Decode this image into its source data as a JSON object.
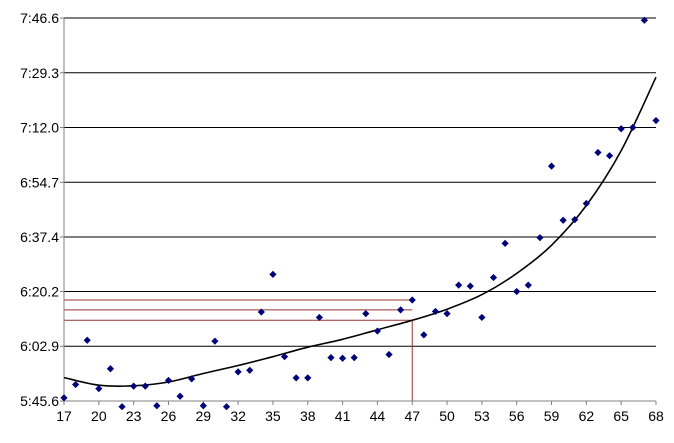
{
  "chart_data": {
    "type": "scatter",
    "title": "",
    "xlabel": "",
    "ylabel": "",
    "xlim": [
      17,
      68
    ],
    "ylim_seconds": [
      345.6,
      466.6
    ],
    "x_ticks": [
      17,
      20,
      23,
      26,
      29,
      32,
      35,
      38,
      41,
      44,
      47,
      50,
      53,
      56,
      59,
      62,
      65,
      68
    ],
    "x_tick_labels": [
      "17",
      "20",
      "23",
      "26",
      "29",
      "32",
      "35",
      "38",
      "41",
      "44",
      "47",
      "50",
      "53",
      "56",
      "59",
      "62",
      "65",
      "68"
    ],
    "y_ticks_seconds": [
      345.6,
      362.9,
      380.2,
      397.4,
      414.7,
      432.0,
      449.3,
      466.6
    ],
    "y_tick_labels": [
      "5:45.6",
      "6:02.9",
      "6:20.2",
      "6:37.4",
      "6:54.7",
      "7:12.0",
      "7:29.3",
      "7:46.6"
    ],
    "gridlines": "horizontal",
    "legend": "none",
    "colors": {
      "points": "#00007a",
      "trend": "#000000",
      "reference": "#993333",
      "grid": "#000000",
      "axis": "#808080"
    },
    "points": [
      {
        "x": 17,
        "y": 346.6
      },
      {
        "x": 18,
        "y": 350.8
      },
      {
        "x": 19,
        "y": 364.8
      },
      {
        "x": 20,
        "y": 349.5
      },
      {
        "x": 21,
        "y": 355.8
      },
      {
        "x": 22,
        "y": 343.8
      },
      {
        "x": 23,
        "y": 350.3
      },
      {
        "x": 24,
        "y": 350.3
      },
      {
        "x": 25,
        "y": 344.1
      },
      {
        "x": 26,
        "y": 352.1
      },
      {
        "x": 27,
        "y": 347.1
      },
      {
        "x": 28,
        "y": 352.6
      },
      {
        "x": 29,
        "y": 344.1
      },
      {
        "x": 30,
        "y": 364.5
      },
      {
        "x": 31,
        "y": 343.8
      },
      {
        "x": 32,
        "y": 354.8
      },
      {
        "x": 33,
        "y": 355.3
      },
      {
        "x": 34,
        "y": 373.7
      },
      {
        "x": 35,
        "y": 385.6
      },
      {
        "x": 36,
        "y": 359.6
      },
      {
        "x": 37,
        "y": 352.9
      },
      {
        "x": 38,
        "y": 352.9
      },
      {
        "x": 39,
        "y": 372.0
      },
      {
        "x": 40,
        "y": 359.3
      },
      {
        "x": 41,
        "y": 359.1
      },
      {
        "x": 42,
        "y": 359.3
      },
      {
        "x": 43,
        "y": 373.2
      },
      {
        "x": 44,
        "y": 367.7
      },
      {
        "x": 45,
        "y": 360.3
      },
      {
        "x": 46,
        "y": 374.4
      },
      {
        "x": 47,
        "y": 377.5
      },
      {
        "x": 48,
        "y": 366.5
      },
      {
        "x": 49,
        "y": 373.9
      },
      {
        "x": 50,
        "y": 373.2
      },
      {
        "x": 51,
        "y": 382.2
      },
      {
        "x": 52,
        "y": 381.9
      },
      {
        "x": 53,
        "y": 372.0
      },
      {
        "x": 54,
        "y": 384.6
      },
      {
        "x": 55,
        "y": 395.4
      },
      {
        "x": 56,
        "y": 380.2
      },
      {
        "x": 57,
        "y": 382.2
      },
      {
        "x": 58,
        "y": 397.2
      },
      {
        "x": 59,
        "y": 419.8
      },
      {
        "x": 60,
        "y": 402.7
      },
      {
        "x": 61,
        "y": 402.9
      },
      {
        "x": 62,
        "y": 408.0
      },
      {
        "x": 63,
        "y": 424.1
      },
      {
        "x": 64,
        "y": 423.1
      },
      {
        "x": 65,
        "y": 431.6
      },
      {
        "x": 66,
        "y": 432.0
      },
      {
        "x": 67,
        "y": 465.9
      },
      {
        "x": 68,
        "y": 434.2
      }
    ],
    "trendline": {
      "type": "polynomial",
      "points": [
        {
          "x": 17,
          "y": 353.0
        },
        {
          "x": 20,
          "y": 350.6
        },
        {
          "x": 23,
          "y": 350.4
        },
        {
          "x": 26,
          "y": 351.6
        },
        {
          "x": 29,
          "y": 354.3
        },
        {
          "x": 32,
          "y": 356.8
        },
        {
          "x": 35,
          "y": 359.6
        },
        {
          "x": 38,
          "y": 362.6
        },
        {
          "x": 41,
          "y": 365.1
        },
        {
          "x": 44,
          "y": 368.1
        },
        {
          "x": 47,
          "y": 371.1
        },
        {
          "x": 50,
          "y": 374.6
        },
        {
          "x": 53,
          "y": 379.2
        },
        {
          "x": 56,
          "y": 385.9
        },
        {
          "x": 59,
          "y": 394.8
        },
        {
          "x": 62,
          "y": 407.4
        },
        {
          "x": 65,
          "y": 424.7
        },
        {
          "x": 68,
          "y": 447.9
        }
      ]
    },
    "reference_lines": [
      {
        "y": 377.5,
        "x_end": 47
      },
      {
        "y": 374.4,
        "x_end": 47
      },
      {
        "y": 371.1,
        "x_end": 47
      }
    ],
    "reference_vertical": {
      "x": 47,
      "y_top": 371.1
    }
  }
}
